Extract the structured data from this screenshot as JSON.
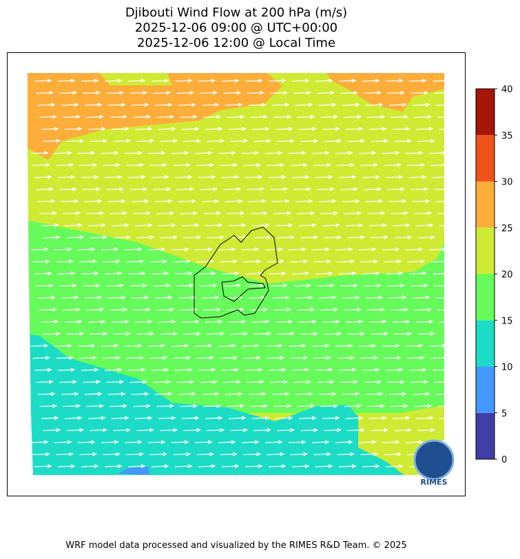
{
  "title_lines": [
    "Djibouti Wind Flow at 200 hPa (m/s)",
    "2025-12-06 09:00 @ UTC+00:00",
    "2025-12-06 12:00 @ Local Time"
  ],
  "colorbar": {
    "bounds": [
      0,
      5,
      10,
      15,
      20,
      25,
      30,
      35,
      40
    ],
    "colors": [
      "#3f3fa6",
      "#4499ff",
      "#1cdcc6",
      "#66fb5a",
      "#cfea33",
      "#fdad3a",
      "#ee5218",
      "#a51606"
    ],
    "ticks": [
      0,
      5,
      10,
      15,
      20,
      25,
      30,
      35,
      40
    ]
  },
  "logo_text": "RIMES",
  "footer": "WRF model data processed and visualized by the RIMES R&D Team. © 2025"
}
